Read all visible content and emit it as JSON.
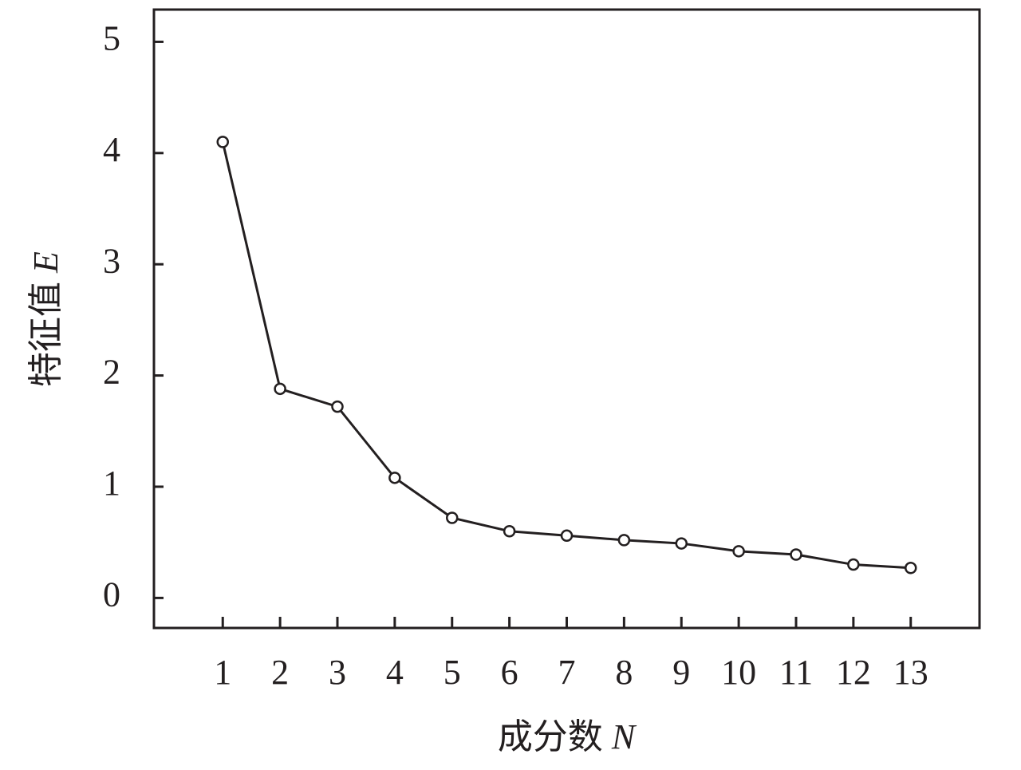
{
  "chart_data": {
    "type": "line",
    "x_label": "成分数 N",
    "y_label": "特征值 E",
    "x": [
      1,
      2,
      3,
      4,
      5,
      6,
      7,
      8,
      9,
      10,
      11,
      12,
      13
    ],
    "values": [
      4.1,
      1.88,
      1.72,
      1.08,
      0.72,
      0.6,
      0.56,
      0.52,
      0.49,
      0.42,
      0.39,
      0.3,
      0.27
    ],
    "color": "#231f20",
    "xlim": [
      -0.2,
      14.2
    ],
    "ylim": [
      -0.27,
      5.29
    ],
    "xticks": [
      1,
      2,
      3,
      4,
      5,
      6,
      7,
      8,
      9,
      10,
      11,
      12,
      13
    ],
    "yticks": [
      0,
      1,
      2,
      3,
      4,
      5
    ],
    "grid": false,
    "markers": "open-circle"
  }
}
